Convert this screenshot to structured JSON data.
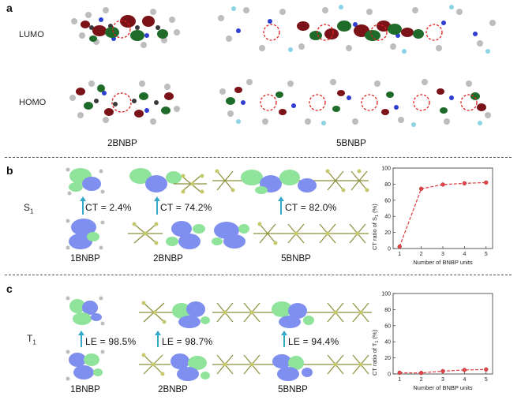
{
  "panels": {
    "a": {
      "label": "a",
      "rows": {
        "lumo": "LUMO",
        "homo": "HOMO"
      },
      "captions": {
        "left": "2BNBP",
        "right": "5BNBP"
      }
    },
    "b": {
      "label": "b",
      "state_label": "S",
      "state_sub": "1",
      "captions": [
        "1BNBP",
        "2BNBP",
        "5BNBP"
      ],
      "ct_labels": [
        "CT = 2.4%",
        "CT = 74.2%",
        "CT = 82.0%"
      ]
    },
    "c": {
      "label": "c",
      "state_label": "T",
      "state_sub": "1",
      "captions": [
        "1BNBP",
        "2BNBP",
        "5BNBP"
      ],
      "le_labels": [
        "LE = 98.5%",
        "LE = 98.7%",
        "LE = 94.4%"
      ]
    }
  },
  "colors": {
    "lumo_red": "#7a1218",
    "lumo_green": "#1f6b2a",
    "orbital_blue": "#7f8ff0",
    "orbital_green": "#8fe39a",
    "ring_dash": "#e02020",
    "series": "#e0474b",
    "arrow": "#35a9c9"
  },
  "chart_data": [
    {
      "type": "line",
      "x": [
        1,
        2,
        3,
        4,
        5
      ],
      "values": [
        2.4,
        74.2,
        79.5,
        81.0,
        82.0
      ],
      "xlabel": "Number of BNBP units",
      "ylabel_main": "CT ratio of S",
      "ylabel_sub": "1",
      "ylabel_tail": " (%)",
      "xlim": [
        0.7,
        5.3
      ],
      "ylim": [
        0,
        100
      ],
      "xticks": [
        "1",
        "2",
        "3",
        "4",
        "5"
      ],
      "yticks": [
        "0",
        "20",
        "40",
        "60",
        "80",
        "100"
      ]
    },
    {
      "type": "line",
      "x": [
        1,
        2,
        3,
        4,
        5
      ],
      "values": [
        1.5,
        1.3,
        3.5,
        5.0,
        5.6
      ],
      "xlabel": "Number of BNBP units",
      "ylabel_main": "CT ratio of T",
      "ylabel_sub": "1",
      "ylabel_tail": " (%)",
      "xlim": [
        0.7,
        5.3
      ],
      "ylim": [
        0,
        100
      ],
      "xticks": [
        "1",
        "2",
        "3",
        "4",
        "5"
      ],
      "yticks": [
        "0",
        "20",
        "40",
        "60",
        "80",
        "100"
      ]
    }
  ]
}
